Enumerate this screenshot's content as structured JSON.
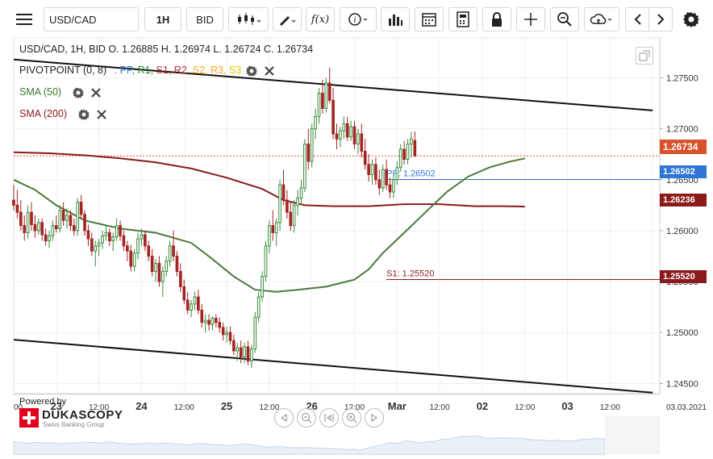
{
  "toolbar": {
    "symbol": "USD/CAD",
    "timeframe": "1H",
    "side": "BID",
    "function_label": "f(x)"
  },
  "legend": {
    "ohlc": "USD/CAD, 1H, BID   O. 1.26885 H. 1.26974 L. 1.26724 C. 1.26734",
    "pivot_label": "PIVOTPOINT (0, 8)",
    "pivot_sep": ":",
    "pivot_items": [
      {
        "label": "PP,",
        "color": "#2e75d6"
      },
      {
        "label": "R1,",
        "color": "#2e7d32"
      },
      {
        "label": "S1,",
        "color": "#c62828"
      },
      {
        "label": "R2,",
        "color": "#c62828"
      },
      {
        "label": "S2,",
        "color": "#f5a623"
      },
      {
        "label": "R3,",
        "color": "#f5a623"
      },
      {
        "label": "S3",
        "color": "#e6c800"
      }
    ],
    "sma50": "SMA (50)",
    "sma200": "SMA (200)"
  },
  "branding": {
    "powered_by": "Powered by",
    "name": "DUKASCOPY",
    "tagline": "Swiss Banking Group"
  },
  "colors": {
    "up": "#3a8a3a",
    "down": "#a52424",
    "sma50": "#4a7a3a",
    "sma200": "#8b1a1a",
    "pp": "#2e75d6",
    "s1": "#8b1a1a",
    "last": "#d9532a"
  },
  "chart_data": {
    "type": "candlestick",
    "symbol": "USD/CAD",
    "timeframe": "1H",
    "ylim": [
      1.244,
      1.279
    ],
    "y_ticks": [
      "1.27500",
      "1.27000",
      "1.26500",
      "1.26000",
      "1.25500",
      "1.25000",
      "1.24500"
    ],
    "y_tick_values": [
      1.275,
      1.27,
      1.265,
      1.26,
      1.255,
      1.25,
      1.245
    ],
    "x_ticks": [
      "00",
      "23",
      "12:00",
      "24",
      "12:00",
      "25",
      "12:00",
      "26",
      "12:00",
      "Mar",
      "12:00",
      "02",
      "12:00",
      "03",
      "12:00",
      "03.03.2021"
    ],
    "x_tick_indices": [
      0,
      12,
      24,
      36,
      48,
      60,
      72,
      84,
      96,
      108,
      120,
      132,
      144,
      156,
      168,
      180
    ],
    "x_major": [
      "23",
      "24",
      "25",
      "26",
      "Mar",
      "02",
      "03"
    ],
    "xlim": [
      0,
      182
    ],
    "last_price": "1.26734",
    "last_price_value": 1.26734,
    "pivot_levels": [
      {
        "name": "PP",
        "label": "PP: 1.26502",
        "tag": "1.26502",
        "value": 1.26502,
        "start_index": 105
      },
      {
        "name": "S1",
        "label": "S1: 1.25520",
        "tag": "1.25520",
        "value": 1.2552,
        "start_index": 105
      }
    ],
    "sma200_tag": "1.26236",
    "sma200_last": 1.26236,
    "ohlc_last": {
      "open": 1.26885,
      "high": 1.26974,
      "low": 1.26724,
      "close": 1.26734
    },
    "trend_lines": [
      {
        "name": "upper-channel",
        "start": [
          0,
          1.2768
        ],
        "end": [
          180,
          1.2718
        ]
      },
      {
        "name": "lower-channel",
        "start": [
          0,
          1.2493
        ],
        "end": [
          180,
          1.2441
        ]
      }
    ],
    "sma50": [
      [
        0,
        1.265
      ],
      [
        6,
        1.264
      ],
      [
        12,
        1.2625
      ],
      [
        20,
        1.261
      ],
      [
        30,
        1.2602
      ],
      [
        40,
        1.2598
      ],
      [
        50,
        1.2588
      ],
      [
        56,
        1.2572
      ],
      [
        62,
        1.2555
      ],
      [
        68,
        1.2542
      ],
      [
        74,
        1.254
      ],
      [
        80,
        1.2542
      ],
      [
        88,
        1.2545
      ],
      [
        96,
        1.2552
      ],
      [
        100,
        1.2562
      ],
      [
        104,
        1.2578
      ],
      [
        110,
        1.2598
      ],
      [
        116,
        1.2618
      ],
      [
        122,
        1.2638
      ],
      [
        128,
        1.2653
      ],
      [
        134,
        1.2662
      ],
      [
        140,
        1.2668
      ],
      [
        144,
        1.2671
      ]
    ],
    "sma200": [
      [
        0,
        1.2677
      ],
      [
        10,
        1.2676
      ],
      [
        20,
        1.2674
      ],
      [
        30,
        1.2671
      ],
      [
        40,
        1.2667
      ],
      [
        50,
        1.2661
      ],
      [
        60,
        1.2652
      ],
      [
        70,
        1.2641
      ],
      [
        76,
        1.263
      ],
      [
        82,
        1.2625
      ],
      [
        90,
        1.2624
      ],
      [
        100,
        1.2624
      ],
      [
        110,
        1.2626
      ],
      [
        120,
        1.2626
      ],
      [
        130,
        1.2624
      ],
      [
        138,
        1.2624
      ],
      [
        144,
        1.26236
      ]
    ],
    "candles": [
      [
        1.263,
        1.2645,
        1.262,
        1.2625
      ],
      [
        1.2625,
        1.264,
        1.2612,
        1.2618
      ],
      [
        1.2618,
        1.263,
        1.26,
        1.2605
      ],
      [
        1.2605,
        1.2615,
        1.259,
        1.2598
      ],
      [
        1.2598,
        1.2625,
        1.2592,
        1.2618
      ],
      [
        1.2618,
        1.2628,
        1.26,
        1.2606
      ],
      [
        1.2606,
        1.2615,
        1.2593,
        1.26
      ],
      [
        1.26,
        1.2612,
        1.2596,
        1.2608
      ],
      [
        1.2608,
        1.2612,
        1.259,
        1.2596
      ],
      [
        1.2596,
        1.2602,
        1.2585,
        1.259
      ],
      [
        1.259,
        1.26,
        1.2583,
        1.2595
      ],
      [
        1.2595,
        1.261,
        1.259,
        1.2605
      ],
      [
        1.2605,
        1.2615,
        1.2598,
        1.2602
      ],
      [
        1.2602,
        1.2625,
        1.2598,
        1.262
      ],
      [
        1.262,
        1.2628,
        1.2605,
        1.261
      ],
      [
        1.261,
        1.2622,
        1.2602,
        1.2615
      ],
      [
        1.2615,
        1.262,
        1.26,
        1.2605
      ],
      [
        1.2605,
        1.2612,
        1.2595,
        1.26
      ],
      [
        1.26,
        1.2632,
        1.2595,
        1.2628
      ],
      [
        1.2628,
        1.2635,
        1.2612,
        1.2616
      ],
      [
        1.2616,
        1.262,
        1.2595,
        1.26
      ],
      [
        1.26,
        1.2606,
        1.2585,
        1.2592
      ],
      [
        1.2592,
        1.2598,
        1.2575,
        1.258
      ],
      [
        1.258,
        1.259,
        1.2565,
        1.2585
      ],
      [
        1.2585,
        1.2592,
        1.2575,
        1.2588
      ],
      [
        1.2588,
        1.26,
        1.2582,
        1.2595
      ],
      [
        1.2595,
        1.2605,
        1.259,
        1.2598
      ],
      [
        1.2598,
        1.2602,
        1.2585,
        1.259
      ],
      [
        1.259,
        1.2598,
        1.258,
        1.2594
      ],
      [
        1.2594,
        1.2612,
        1.259,
        1.2605
      ],
      [
        1.2605,
        1.261,
        1.259,
        1.2595
      ],
      [
        1.2595,
        1.26,
        1.258,
        1.2585
      ],
      [
        1.2585,
        1.259,
        1.257,
        1.258
      ],
      [
        1.258,
        1.2586,
        1.256,
        1.2565
      ],
      [
        1.2565,
        1.2582,
        1.256,
        1.2578
      ],
      [
        1.2578,
        1.2598,
        1.2572,
        1.2592
      ],
      [
        1.2592,
        1.2602,
        1.2585,
        1.2596
      ],
      [
        1.2596,
        1.26,
        1.258,
        1.2585
      ],
      [
        1.2585,
        1.259,
        1.257,
        1.2575
      ],
      [
        1.2575,
        1.2582,
        1.2555,
        1.256
      ],
      [
        1.256,
        1.2572,
        1.255,
        1.2568
      ],
      [
        1.2568,
        1.2575,
        1.2545,
        1.255
      ],
      [
        1.255,
        1.2565,
        1.2535,
        1.256
      ],
      [
        1.256,
        1.2575,
        1.2555,
        1.257
      ],
      [
        1.257,
        1.259,
        1.2565,
        1.2585
      ],
      [
        1.2585,
        1.26,
        1.257,
        1.2575
      ],
      [
        1.2575,
        1.258,
        1.2555,
        1.256
      ],
      [
        1.256,
        1.2568,
        1.254,
        1.2545
      ],
      [
        1.2545,
        1.2552,
        1.2528,
        1.2532
      ],
      [
        1.2532,
        1.254,
        1.2518,
        1.2522
      ],
      [
        1.2522,
        1.2532,
        1.2515,
        1.2528
      ],
      [
        1.2528,
        1.254,
        1.2522,
        1.2535
      ],
      [
        1.2535,
        1.2542,
        1.2518,
        1.2522
      ],
      [
        1.2522,
        1.2528,
        1.2505,
        1.251
      ],
      [
        1.251,
        1.2518,
        1.25,
        1.2512
      ],
      [
        1.2512,
        1.2518,
        1.2502,
        1.2508
      ],
      [
        1.2508,
        1.2516,
        1.2502,
        1.2514
      ],
      [
        1.2514,
        1.2518,
        1.2505,
        1.251
      ],
      [
        1.251,
        1.2515,
        1.25,
        1.2505
      ],
      [
        1.2505,
        1.251,
        1.2492,
        1.2498
      ],
      [
        1.2498,
        1.2506,
        1.249,
        1.25
      ],
      [
        1.25,
        1.2506,
        1.2488,
        1.2492
      ],
      [
        1.2492,
        1.2498,
        1.2478,
        1.2482
      ],
      [
        1.2482,
        1.249,
        1.2472,
        1.2485
      ],
      [
        1.2485,
        1.2492,
        1.247,
        1.2476
      ],
      [
        1.2476,
        1.249,
        1.247,
        1.2486
      ],
      [
        1.2486,
        1.2492,
        1.2468,
        1.2472
      ],
      [
        1.2472,
        1.2488,
        1.2465,
        1.2484
      ],
      [
        1.2484,
        1.252,
        1.248,
        1.2515
      ],
      [
        1.2515,
        1.254,
        1.251,
        1.2535
      ],
      [
        1.2535,
        1.256,
        1.253,
        1.2555
      ],
      [
        1.2555,
        1.259,
        1.255,
        1.2585
      ],
      [
        1.2585,
        1.261,
        1.2578,
        1.2605
      ],
      [
        1.2605,
        1.262,
        1.259,
        1.2598
      ],
      [
        1.2598,
        1.2612,
        1.2585,
        1.2608
      ],
      [
        1.2608,
        1.265,
        1.26,
        1.2645
      ],
      [
        1.2645,
        1.266,
        1.2625,
        1.263
      ],
      [
        1.263,
        1.264,
        1.2612,
        1.2618
      ],
      [
        1.2618,
        1.2628,
        1.26,
        1.2605
      ],
      [
        1.2605,
        1.263,
        1.2598,
        1.2625
      ],
      [
        1.2625,
        1.264,
        1.2615,
        1.2632
      ],
      [
        1.2632,
        1.265,
        1.2625,
        1.2642
      ],
      [
        1.2642,
        1.269,
        1.2638,
        1.2685
      ],
      [
        1.2685,
        1.27,
        1.266,
        1.2668
      ],
      [
        1.2668,
        1.2705,
        1.2662,
        1.27
      ],
      [
        1.27,
        1.272,
        1.269,
        1.2712
      ],
      [
        1.2712,
        1.274,
        1.2705,
        1.2735
      ],
      [
        1.2735,
        1.2748,
        1.2715,
        1.272
      ],
      [
        1.272,
        1.275,
        1.2716,
        1.2745
      ],
      [
        1.2745,
        1.276,
        1.2725,
        1.2728
      ],
      [
        1.2728,
        1.274,
        1.269,
        1.2695
      ],
      [
        1.2695,
        1.2705,
        1.268,
        1.269
      ],
      [
        1.269,
        1.2702,
        1.2682,
        1.2698
      ],
      [
        1.2698,
        1.2712,
        1.269,
        1.2705
      ],
      [
        1.2705,
        1.2712,
        1.2688,
        1.2692
      ],
      [
        1.2692,
        1.2708,
        1.2688,
        1.2702
      ],
      [
        1.2702,
        1.2708,
        1.268,
        1.2685
      ],
      [
        1.2685,
        1.27,
        1.2675,
        1.2695
      ],
      [
        1.2695,
        1.2705,
        1.2672,
        1.2678
      ],
      [
        1.2678,
        1.269,
        1.266,
        1.2665
      ],
      [
        1.2665,
        1.2675,
        1.2648,
        1.2655
      ],
      [
        1.2655,
        1.267,
        1.2645,
        1.2665
      ],
      [
        1.2665,
        1.2672,
        1.2645,
        1.265
      ],
      [
        1.265,
        1.266,
        1.2635,
        1.2642
      ],
      [
        1.2642,
        1.2665,
        1.2638,
        1.266
      ],
      [
        1.266,
        1.267,
        1.264,
        1.2645
      ],
      [
        1.2645,
        1.2652,
        1.2632,
        1.2638
      ],
      [
        1.2638,
        1.2655,
        1.2632,
        1.265
      ],
      [
        1.265,
        1.2668,
        1.2645,
        1.2662
      ],
      [
        1.2662,
        1.2685,
        1.2658,
        1.268
      ],
      [
        1.268,
        1.2688,
        1.2665,
        1.267
      ],
      [
        1.267,
        1.269,
        1.2665,
        1.2685
      ],
      [
        1.2685,
        1.2697,
        1.2672,
        1.269
      ],
      [
        1.26885,
        1.26974,
        1.26724,
        1.26734
      ]
    ]
  }
}
